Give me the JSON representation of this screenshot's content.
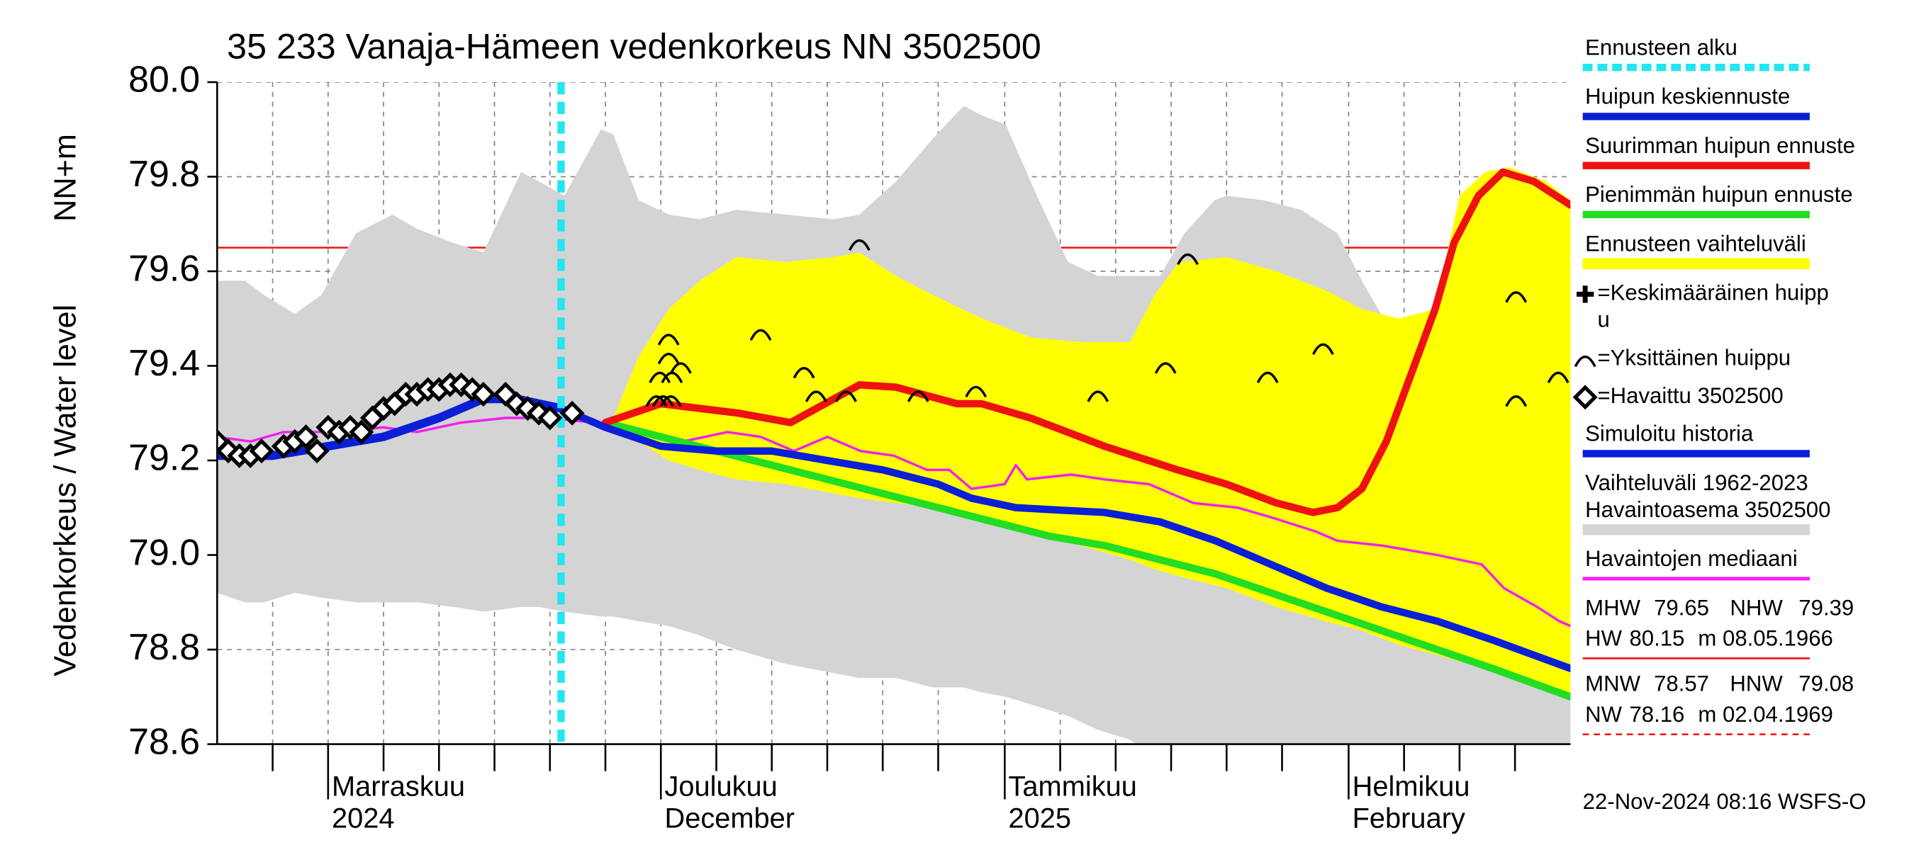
{
  "chart_data": {
    "type": "line",
    "title": "35 233 Vanaja-Hämeen vedenkorkeus NN 3502500",
    "ylabel": "Vedenkorkeus / Water level",
    "ylabel_unit": "NN+m",
    "xlim": [
      0,
      122
    ],
    "ylim": [
      78.6,
      80.0
    ],
    "yticks": [
      78.6,
      78.8,
      {
        "value": 79.0,
        "label": "79.0"
      },
      79.2,
      79.4,
      79.6,
      79.8,
      {
        "value": 80.0,
        "label": "80.0"
      }
    ],
    "xticks": [
      {
        "value": 10,
        "label": [
          "Marraskuu",
          "2024"
        ]
      },
      {
        "value": 40,
        "label": [
          "Joulukuu",
          "December"
        ]
      },
      {
        "value": 71,
        "label": [
          "Tammikuu",
          "2025"
        ]
      },
      {
        "value": 102,
        "label": [
          "Helmikuu",
          "February"
        ]
      }
    ],
    "xgrid": [
      5,
      15,
      20,
      25,
      30,
      35,
      45,
      50,
      55,
      60,
      65,
      76,
      81,
      86,
      91,
      96,
      107,
      112,
      117
    ],
    "grid": true,
    "series": [
      {
        "name": [
          "Vaihteluväli 1962-2023",
          " Havaintoasema 3502500"
        ],
        "kind": "band",
        "color": "#d4d4d4",
        "x": [
          0,
          2.5,
          4.2,
          7,
          9.4,
          12.5,
          15.8,
          18,
          21.3,
          24,
          27.4,
          29,
          31.3,
          34.6,
          35.7,
          38,
          40.7,
          43.5,
          46.8,
          51.2,
          55.6,
          57.9,
          61.2,
          64.5,
          67.3,
          68.9,
          71.1,
          73.9,
          76.7,
          79.4,
          82.2,
          85,
          87.2,
          89.9,
          91,
          94.4,
          97.7,
          101,
          103.2,
          105.4,
          107.6,
          109.8,
          111,
          114.3,
          117.6,
          122
        ],
        "upper": [
          79.58,
          79.58,
          79.55,
          79.51,
          79.55,
          79.68,
          79.72,
          79.69,
          79.66,
          79.64,
          79.81,
          79.79,
          79.76,
          79.9,
          79.89,
          79.75,
          79.72,
          79.71,
          79.73,
          79.72,
          79.71,
          79.72,
          79.79,
          79.88,
          79.95,
          79.93,
          79.91,
          79.76,
          79.62,
          79.59,
          79.59,
          79.59,
          79.68,
          79.75,
          79.76,
          79.75,
          79.73,
          79.68,
          79.58,
          79.49,
          79.4,
          79.38,
          79.47,
          79.56,
          79.5,
          79.32
        ],
        "lower": [
          78.92,
          78.9,
          78.9,
          78.92,
          78.91,
          78.9,
          78.9,
          78.9,
          78.89,
          78.88,
          78.89,
          78.89,
          78.88,
          78.87,
          78.87,
          78.86,
          78.85,
          78.83,
          78.8,
          78.77,
          78.75,
          78.74,
          78.74,
          78.72,
          78.72,
          78.71,
          78.7,
          78.68,
          78.66,
          78.63,
          78.61,
          78.57,
          78.57,
          78.57,
          78.57,
          78.57,
          78.57,
          78.57,
          78.57,
          78.57,
          78.57,
          78.57,
          78.57,
          78.57,
          78.57,
          78.57
        ]
      },
      {
        "name": "Ennusteen vaihteluväli",
        "kind": "band",
        "color": "#ffff00",
        "x": [
          35.7,
          38,
          40.7,
          43.5,
          46.8,
          51.2,
          55.6,
          57.9,
          61.2,
          64.5,
          69,
          73.4,
          77.9,
          82.3,
          84.5,
          86.7,
          91,
          95.5,
          99.9,
          103.2,
          106.5,
          109.8,
          112,
          114.3,
          116.5,
          119.8,
          122
        ],
        "upper": [
          79.29,
          79.42,
          79.52,
          79.58,
          79.63,
          79.62,
          79.63,
          79.64,
          79.59,
          79.55,
          79.5,
          79.46,
          79.45,
          79.45,
          79.55,
          79.62,
          79.63,
          79.6,
          79.56,
          79.52,
          79.5,
          79.52,
          79.76,
          79.81,
          79.82,
          79.79,
          79.75
        ],
        "lower": [
          79.28,
          79.24,
          79.2,
          79.18,
          79.16,
          79.15,
          79.13,
          79.12,
          79.11,
          79.1,
          79.07,
          79.05,
          79.02,
          78.99,
          78.97,
          78.955,
          78.93,
          78.89,
          78.86,
          78.84,
          78.81,
          78.79,
          78.775,
          78.76,
          78.745,
          78.72,
          78.7
        ]
      },
      {
        "name": "Havaintojen mediaani",
        "kind": "line",
        "color": "#ee22ee",
        "width": 2,
        "x": [
          0,
          3,
          6,
          10,
          15,
          18,
          22,
          26,
          30,
          34,
          38,
          42,
          46,
          49,
          52,
          55,
          58,
          61,
          64,
          66,
          68,
          71,
          72,
          73,
          77,
          80,
          84,
          88,
          92,
          95,
          99,
          101,
          105,
          110,
          114,
          116,
          119,
          121,
          122
        ],
        "values": [
          79.25,
          79.24,
          79.26,
          79.26,
          79.27,
          79.26,
          79.28,
          79.29,
          79.29,
          79.28,
          79.26,
          79.24,
          79.26,
          79.25,
          79.22,
          79.25,
          79.22,
          79.21,
          79.18,
          79.18,
          79.14,
          79.15,
          79.19,
          79.16,
          79.17,
          79.16,
          79.15,
          79.11,
          79.1,
          79.08,
          79.05,
          79.03,
          79.02,
          79.0,
          78.98,
          78.93,
          78.89,
          78.86,
          78.85
        ]
      },
      {
        "name": "Pienimmän huipun ennuste",
        "kind": "line",
        "color": "#22dd22",
        "width": 6,
        "x": [
          35,
          40,
          45,
          50,
          55,
          60,
          65,
          70,
          75,
          80,
          85,
          90,
          95,
          100,
          105,
          110,
          115,
          122
        ],
        "values": [
          79.28,
          79.25,
          79.22,
          79.19,
          79.16,
          79.13,
          79.1,
          79.07,
          79.04,
          79.02,
          78.99,
          78.96,
          78.92,
          78.88,
          78.84,
          78.8,
          78.76,
          78.7
        ]
      },
      {
        "name": "Suurimman huipun ennuste",
        "kind": "line",
        "color": "#ee1111",
        "width": 6,
        "x": [
          35,
          40,
          47,
          51.7,
          57.9,
          61.2,
          66.7,
          68.9,
          73.3,
          80,
          86.6,
          91,
          95.5,
          98.8,
          101,
          103.2,
          105.4,
          107.6,
          109.8,
          111.5,
          113.7,
          115.9,
          118.7,
          122
        ],
        "values": [
          79.28,
          79.32,
          79.3,
          79.28,
          79.36,
          79.355,
          79.32,
          79.32,
          79.29,
          79.23,
          79.18,
          79.15,
          79.11,
          79.09,
          79.1,
          79.14,
          79.24,
          79.38,
          79.52,
          79.66,
          79.76,
          79.81,
          79.79,
          79.74
        ]
      },
      {
        "name": "Simuloitu historia",
        "kind": "line",
        "color": "#0a1fd6",
        "width": 7,
        "x": [
          0,
          5,
          10,
          15,
          20,
          24,
          27,
          31
        ],
        "values": [
          79.21,
          79.21,
          79.23,
          79.25,
          79.29,
          79.33,
          79.33,
          79.31
        ]
      },
      {
        "name": "Huipun keskiennuste",
        "kind": "line",
        "color": "#0a1fd6",
        "width": 6,
        "x": [
          31,
          35,
          40,
          45,
          50,
          55,
          60,
          65,
          68,
          72,
          76,
          80,
          85,
          90,
          95,
          100,
          105,
          110,
          115,
          122
        ],
        "values": [
          79.31,
          79.27,
          79.23,
          79.22,
          79.22,
          79.2,
          79.18,
          79.15,
          79.12,
          79.1,
          79.095,
          79.09,
          79.07,
          79.03,
          78.98,
          78.93,
          78.89,
          78.86,
          78.82,
          78.76
        ]
      },
      {
        "name": "Ennusteen alku",
        "kind": "vline",
        "color": "#22e6f0",
        "x": [
          31
        ]
      },
      {
        "name": [
          "=Keskimääräinen huipp",
          "u"
        ],
        "kind": "marker",
        "marker": "plus",
        "color": "#000000",
        "x": [],
        "values": []
      },
      {
        "name": "=Yksittäinen huippu",
        "kind": "marker",
        "marker": "arc",
        "color": "#000000",
        "x": [
          40.7,
          40.7,
          41.0,
          39.9,
          41.8,
          40.2,
          39.6,
          40.9,
          49.0,
          52.9,
          54.0,
          56.7,
          57.9,
          63.2,
          68.4,
          79.4,
          85.5,
          87.5,
          94.7,
          99.7,
          117.1,
          117.1,
          120.9
        ],
        "values": [
          79.46,
          79.42,
          79.38,
          79.38,
          79.4,
          79.33,
          79.33,
          79.33,
          79.47,
          79.39,
          79.34,
          79.34,
          79.66,
          79.34,
          79.35,
          79.34,
          79.4,
          79.63,
          79.38,
          79.44,
          79.55,
          79.33,
          79.38
        ]
      },
      {
        "name": "=Havaittu 3502500",
        "kind": "marker",
        "marker": "diamond",
        "color": "#000000",
        "x": [
          0,
          1,
          2,
          3,
          4,
          6,
          7,
          8,
          9,
          10,
          11,
          12,
          13,
          14,
          15,
          16,
          17,
          18,
          19,
          20,
          21,
          22,
          23,
          24,
          26,
          27,
          28,
          29,
          30,
          32
        ],
        "values": [
          79.24,
          79.22,
          79.21,
          79.21,
          79.22,
          79.23,
          79.24,
          79.25,
          79.22,
          79.27,
          79.26,
          79.27,
          79.26,
          79.29,
          79.31,
          79.32,
          79.34,
          79.34,
          79.35,
          79.35,
          79.36,
          79.36,
          79.35,
          79.34,
          79.34,
          79.32,
          79.31,
          79.3,
          79.29,
          79.3
        ]
      }
    ],
    "legend_order": [
      7,
      6,
      4,
      3,
      1,
      8,
      9,
      10,
      5,
      0,
      2
    ],
    "stats": [
      {
        "name": "MHW",
        "value": 79.65,
        "line": "solid"
      },
      {
        "name": "NHW",
        "value": 79.39,
        "line": "solid"
      },
      {
        "name": "HW",
        "value": 80.15,
        "unit": "m",
        "date": "08.05.1966"
      },
      {
        "name": "MNW",
        "value": 78.57
      },
      {
        "name": "HNW",
        "value": 79.08,
        "line": "dashed"
      },
      {
        "name": "NW",
        "value": 78.16,
        "unit": "m",
        "date": "02.04.1969"
      }
    ],
    "stats_color": "#ee1111",
    "footer": "22-Nov-2024 08:16 WSFS-O"
  }
}
